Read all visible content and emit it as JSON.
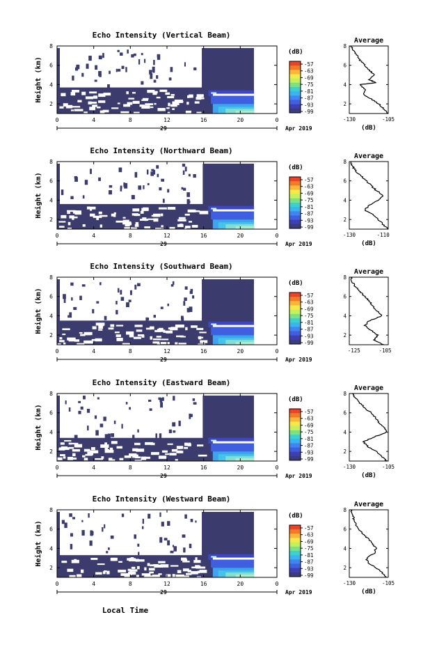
{
  "figure": {
    "xlabel": "Local Time",
    "date_label": "Apr 2019",
    "day_label": "29"
  },
  "colorbar": {
    "unit": "(dB)",
    "ticks": [
      "-57",
      "-63",
      "-69",
      "-75",
      "-81",
      "-87",
      "-93",
      "-99"
    ],
    "colors": [
      "#e8432b",
      "#f47a2a",
      "#fbb53a",
      "#f5e84a",
      "#c6ef5a",
      "#7fe07f",
      "#3fd0c9",
      "#3ab6ef",
      "#3f86f0",
      "#3f5fe0",
      "#3d3fb5",
      "#3b3b80"
    ],
    "background_color": "#3b3b6e"
  },
  "chart_data": [
    {
      "type": "heatmap",
      "title": "Echo Intensity (Vertical Beam)",
      "ylabel": "Height (km)",
      "xlim": [
        0,
        24
      ],
      "ylim": [
        1,
        8
      ],
      "xticks": [
        "0",
        "4",
        "8",
        "12",
        "16",
        "20",
        "0"
      ],
      "yticks": [
        "2",
        "4",
        "6",
        "8"
      ],
      "colorbar_range": [
        -99,
        -57
      ],
      "profile": {
        "title": "Average",
        "xlabel": "(dB)",
        "xticks": [
          "-130",
          "-105"
        ],
        "yticks": [
          "2",
          "4",
          "6",
          "8"
        ],
        "xlim": [
          -130,
          -105
        ],
        "ylim": [
          1,
          8
        ],
        "points": [
          [
            -105,
            1.0
          ],
          [
            -108,
            1.5
          ],
          [
            -111,
            2.0
          ],
          [
            -116,
            2.5
          ],
          [
            -121,
            3.0
          ],
          [
            -120,
            3.5
          ],
          [
            -123,
            4.0
          ],
          [
            -113,
            4.2
          ],
          [
            -117,
            4.5
          ],
          [
            -114,
            5.0
          ],
          [
            -117,
            5.5
          ],
          [
            -120,
            6.0
          ],
          [
            -123,
            6.5
          ],
          [
            -125,
            7.0
          ],
          [
            -127,
            7.5
          ],
          [
            -129,
            8.0
          ]
        ]
      }
    },
    {
      "type": "heatmap",
      "title": "Echo Intensity (Northward Beam)",
      "ylabel": "Height (km)",
      "xlim": [
        0,
        24
      ],
      "ylim": [
        1,
        8
      ],
      "xticks": [
        "0",
        "4",
        "8",
        "12",
        "16",
        "20",
        "0"
      ],
      "yticks": [
        "2",
        "4",
        "6",
        "8"
      ],
      "colorbar_range": [
        -99,
        -57
      ],
      "profile": {
        "title": "Average",
        "xlabel": "(dB)",
        "xticks": [
          "-130",
          "-110"
        ],
        "yticks": [
          "2",
          "4",
          "6",
          "8"
        ],
        "xlim": [
          -130,
          -107
        ],
        "ylim": [
          1,
          8
        ],
        "points": [
          [
            -107,
            1.0
          ],
          [
            -110,
            1.5
          ],
          [
            -113,
            2.0
          ],
          [
            -116,
            2.5
          ],
          [
            -121,
            3.0
          ],
          [
            -118,
            3.5
          ],
          [
            -113,
            4.0
          ],
          [
            -110,
            4.5
          ],
          [
            -114,
            5.0
          ],
          [
            -117,
            5.5
          ],
          [
            -120,
            6.0
          ],
          [
            -123,
            6.5
          ],
          [
            -126,
            7.0
          ],
          [
            -128,
            7.5
          ],
          [
            -129,
            8.0
          ]
        ]
      }
    },
    {
      "type": "heatmap",
      "title": "Echo Intensity (Southward Beam)",
      "ylabel": "Height (km)",
      "xlim": [
        0,
        24
      ],
      "ylim": [
        1,
        8
      ],
      "xticks": [
        "0",
        "4",
        "8",
        "12",
        "16",
        "20",
        "0"
      ],
      "yticks": [
        "2",
        "4",
        "6",
        "8"
      ],
      "colorbar_range": [
        -99,
        -57
      ],
      "profile": {
        "title": "Average",
        "xlabel": "",
        "xticks": [
          "-125",
          "-105"
        ],
        "yticks": [
          "2",
          "4",
          "6",
          "8"
        ],
        "xlim": [
          -128,
          -103
        ],
        "ylim": [
          1,
          8
        ],
        "points": [
          [
            -106,
            1.0
          ],
          [
            -112,
            1.5
          ],
          [
            -110,
            2.0
          ],
          [
            -114,
            2.5
          ],
          [
            -118,
            3.0
          ],
          [
            -115,
            3.5
          ],
          [
            -107,
            4.0
          ],
          [
            -110,
            4.5
          ],
          [
            -113,
            5.0
          ],
          [
            -115,
            5.5
          ],
          [
            -118,
            6.0
          ],
          [
            -121,
            6.5
          ],
          [
            -124,
            7.0
          ],
          [
            -126,
            7.5
          ],
          [
            -127,
            8.0
          ]
        ]
      }
    },
    {
      "type": "heatmap",
      "title": "Echo Intensity (Eastward Beam)",
      "ylabel": "Height (km)",
      "xlim": [
        0,
        24
      ],
      "ylim": [
        1,
        8
      ],
      "xticks": [
        "0",
        "4",
        "8",
        "12",
        "16",
        "20",
        "0"
      ],
      "yticks": [
        "2",
        "4",
        "6",
        "8"
      ],
      "colorbar_range": [
        -99,
        -57
      ],
      "profile": {
        "title": "Average",
        "xlabel": "(dB)",
        "xticks": [
          "-130",
          "-105"
        ],
        "yticks": [
          "2",
          "4",
          "6",
          "8"
        ],
        "xlim": [
          -130,
          -105
        ],
        "ylim": [
          1,
          8
        ],
        "points": [
          [
            -106,
            1.0
          ],
          [
            -109,
            1.5
          ],
          [
            -113,
            2.0
          ],
          [
            -118,
            2.5
          ],
          [
            -121,
            3.0
          ],
          [
            -114,
            3.5
          ],
          [
            -106,
            4.0
          ],
          [
            -108,
            4.5
          ],
          [
            -111,
            5.0
          ],
          [
            -113,
            5.5
          ],
          [
            -116,
            6.0
          ],
          [
            -120,
            6.5
          ],
          [
            -123,
            7.0
          ],
          [
            -126,
            7.5
          ],
          [
            -128,
            8.0
          ]
        ]
      }
    },
    {
      "type": "heatmap",
      "title": "Echo Intensity (Westward Beam)",
      "ylabel": "Height (km)",
      "xlim": [
        0,
        24
      ],
      "ylim": [
        1,
        8
      ],
      "xticks": [
        "0",
        "4",
        "8",
        "12",
        "16",
        "20",
        "0"
      ],
      "yticks": [
        "2",
        "4",
        "6",
        "8"
      ],
      "colorbar_range": [
        -99,
        -57
      ],
      "profile": {
        "title": "Average",
        "xlabel": "(dB)",
        "xticks": [
          "-130",
          "-105"
        ],
        "yticks": [
          "2",
          "4",
          "6",
          "8"
        ],
        "xlim": [
          -130,
          -105
        ],
        "ylim": [
          1,
          8
        ],
        "points": [
          [
            -106,
            1.0
          ],
          [
            -109,
            1.5
          ],
          [
            -113,
            2.0
          ],
          [
            -118,
            2.5
          ],
          [
            -119,
            3.0
          ],
          [
            -114,
            3.5
          ],
          [
            -113,
            4.0
          ],
          [
            -115,
            4.5
          ],
          [
            -118,
            5.0
          ],
          [
            -121,
            5.5
          ],
          [
            -124,
            6.0
          ],
          [
            -126,
            6.5
          ],
          [
            -127,
            7.0
          ],
          [
            -128,
            7.5
          ],
          [
            -129,
            8.0
          ]
        ]
      }
    }
  ]
}
